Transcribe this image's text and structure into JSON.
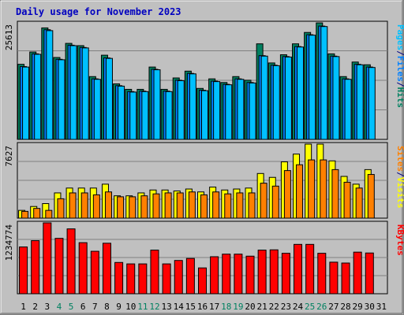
{
  "chart_data": {
    "type": "bar",
    "title": "Daily usage for November 2023",
    "categories": [
      "1",
      "2",
      "3",
      "4",
      "5",
      "6",
      "7",
      "8",
      "9",
      "10",
      "11",
      "12",
      "13",
      "14",
      "15",
      "16",
      "17",
      "18",
      "19",
      "20",
      "21",
      "22",
      "23",
      "24",
      "25",
      "26",
      "27",
      "28",
      "29",
      "30",
      "31"
    ],
    "weekend_days": [
      "4",
      "5",
      "11",
      "12",
      "18",
      "19",
      "25",
      "26"
    ],
    "panels": [
      {
        "name": "hits",
        "ymax": 25613,
        "ymax_label": "25613",
        "side_label": [
          {
            "text": "Pages",
            "color": "#00c0ff"
          },
          {
            "text": "/",
            "color": "#000080"
          },
          {
            "text": "Files",
            "color": "#0080ff"
          },
          {
            "text": "/",
            "color": "#000080"
          },
          {
            "text": "Hits",
            "color": "#008060"
          }
        ],
        "series": [
          {
            "name": "Hits",
            "color": "#008060",
            "values": [
              16500,
              19200,
              24500,
              18000,
              21100,
              20600,
              13800,
              18500,
              12200,
              11000,
              11000,
              15900,
              11000,
              13500,
              15000,
              11200,
              13300,
              12500,
              13800,
              13000,
              21000,
              16800,
              18600,
              21000,
              23500,
              25600,
              18800,
              13800,
              17000,
              16400,
              null
            ]
          },
          {
            "name": "Files",
            "color": "#0080ff",
            "values": [
              16000,
              18800,
              24100,
              17600,
              20700,
              20200,
              13300,
              17900,
              11800,
              10500,
              10600,
              15400,
              10600,
              13000,
              14500,
              10800,
              12800,
              12100,
              13300,
              12500,
              18400,
              16300,
              18200,
              20400,
              23000,
              24900,
              18300,
              13300,
              16500,
              15900,
              null
            ]
          },
          {
            "name": "Pages",
            "color": "#00c0ff",
            "values": [
              15900,
              18700,
              23900,
              17500,
              20600,
              20100,
              13200,
              17800,
              11700,
              10400,
              10500,
              15300,
              10500,
              12900,
              14400,
              10700,
              12700,
              12000,
              13200,
              12400,
              18300,
              16200,
              18100,
              20300,
              22900,
              24800,
              18200,
              13200,
              16400,
              15800,
              null
            ]
          }
        ]
      },
      {
        "name": "visits",
        "ymax": 7627,
        "ymax_label": "7627",
        "side_label": [
          {
            "text": "Sites",
            "color": "#ff8000"
          },
          {
            "text": "/",
            "color": "#000080"
          },
          {
            "text": "Visits",
            "color": "#ffff00"
          }
        ],
        "series": [
          {
            "name": "Visits",
            "color": "#ffff00",
            "values": [
              800,
              1200,
              1500,
              2600,
              3100,
              3100,
              3100,
              3500,
              2300,
              2300,
              2600,
              2900,
              2900,
              2800,
              3000,
              2700,
              3200,
              2900,
              3000,
              3100,
              4600,
              4200,
              5800,
              6600,
              7627,
              7627,
              5900,
              4300,
              3500,
              5000,
              null
            ]
          },
          {
            "name": "Sites",
            "color": "#ff8000",
            "values": [
              700,
              1000,
              800,
              2000,
              2600,
              2600,
              2400,
              2700,
              2200,
              2200,
              2300,
              2500,
              2600,
              2600,
              2700,
              2400,
              2700,
              2500,
              2600,
              2600,
              3600,
              3300,
              4900,
              5500,
              6000,
              6000,
              5000,
              3700,
              3100,
              4500,
              null
            ]
          }
        ]
      },
      {
        "name": "kbytes",
        "ymax": 1234774,
        "ymax_label": "1234774",
        "side_label": [
          {
            "text": "KBytes",
            "color": "#ff0000"
          }
        ],
        "series": [
          {
            "name": "KBytes",
            "color": "#ff0000",
            "values": [
              815000,
              925000,
              1234774,
              965000,
              1130000,
              890000,
              740000,
              880000,
              545000,
              520000,
              520000,
              760000,
              520000,
              580000,
              615000,
              450000,
              645000,
              690000,
              690000,
              655000,
              760000,
              765000,
              705000,
              860000,
              860000,
              705000,
              550000,
              535000,
              725000,
              710000,
              null
            ]
          }
        ]
      }
    ]
  }
}
